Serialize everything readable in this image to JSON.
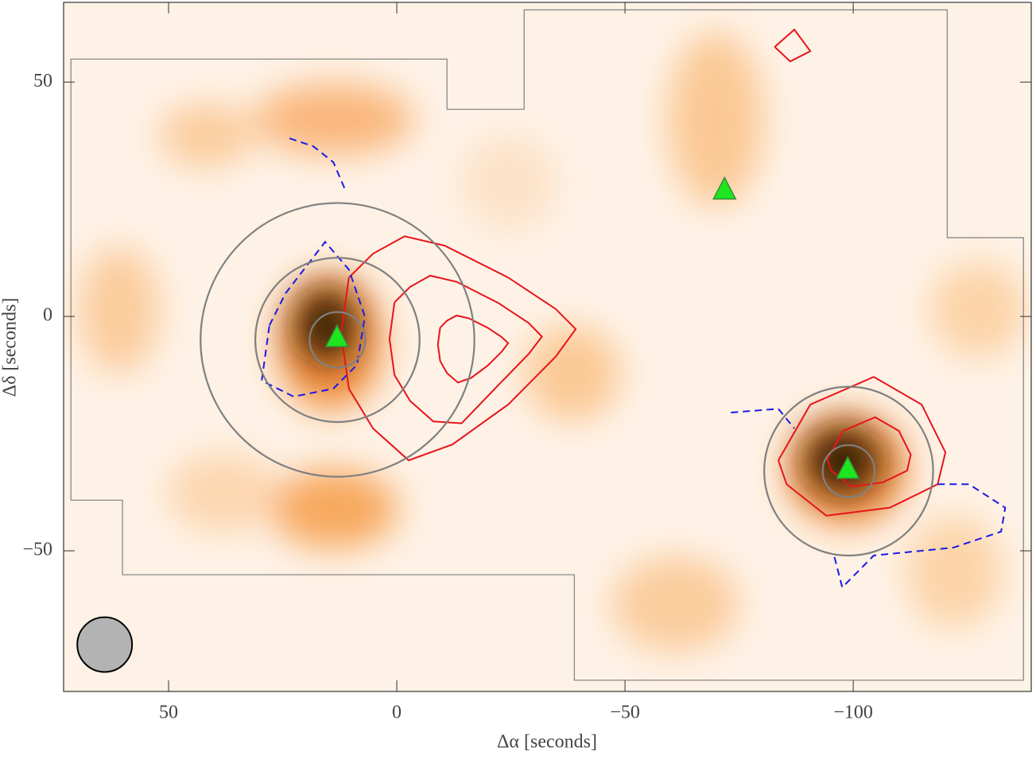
{
  "chart_data": {
    "type": "map",
    "x_label": "Δα [seconds]",
    "y_label": "Δδ [seconds]",
    "xlim": [
      73,
      -139
    ],
    "ylim": [
      -80,
      67
    ],
    "xticks": [
      50,
      0,
      {
        "value": -50,
        "label": "−50"
      },
      {
        "value": -100,
        "label": "−100"
      }
    ],
    "yticks": [
      50,
      0,
      {
        "value": -50,
        "label": "−50"
      }
    ],
    "coverage": {
      "color": "#888888",
      "x": [
        71.4,
        71.4,
        -11.0,
        -11.0,
        -27.9,
        -27.9,
        -120.6,
        -120.6,
        -137.3,
        -137.3,
        -38.9,
        -38.9,
        60.1,
        60.1,
        71.4
      ],
      "y": [
        -39.2,
        54.9,
        54.9,
        44.2,
        44.2,
        65.4,
        65.4,
        16.8,
        16.8,
        -77.6,
        -77.6,
        -55.1,
        -55.1,
        -39.2,
        -39.2
      ]
    },
    "contours": [
      {
        "color": "#e8141b",
        "dashed": false,
        "x": [
          10.5,
          5.2,
          -1.7,
          -10.5,
          -24.4,
          -34.8,
          -39.2,
          -34.8,
          -24.4,
          -12.2,
          -2.6,
          5.2,
          10.5,
          12.2,
          10.5
        ],
        "y": [
          8.3,
          13.4,
          17.1,
          15.1,
          8.3,
          1.6,
          -2.7,
          -8.6,
          -18.8,
          -27.3,
          -30.7,
          -23.9,
          -15.4,
          -3.6,
          8.3
        ]
      },
      {
        "color": "#e8141b",
        "dashed": false,
        "x": [
          0.5,
          -2.9,
          -7.3,
          -13.1,
          -22.2,
          -28.9,
          -31.8,
          -28.9,
          -22.2,
          -14.2,
          -8.0,
          -2.9,
          0.5,
          1.6,
          0.5
        ],
        "y": [
          3.0,
          6.3,
          8.7,
          7.4,
          2.9,
          -1.4,
          -4.3,
          -8.0,
          -14.7,
          -22.8,
          -22.4,
          -18.0,
          -12.5,
          -4.8,
          3.0
        ]
      },
      {
        "color": "#e8141b",
        "dashed": false,
        "x": [
          -9.5,
          -11.0,
          -13.1,
          -15.8,
          -19.9,
          -23.0,
          -24.4,
          -23.0,
          -19.9,
          -16.3,
          -13.4,
          -11.0,
          -9.5,
          -9.0,
          -9.5
        ],
        "y": [
          -2.4,
          -0.9,
          0.2,
          -0.4,
          -2.4,
          -4.4,
          -5.7,
          -7.5,
          -10.5,
          -13.1,
          -14.1,
          -12.1,
          -9.5,
          -6.0,
          -2.4
        ]
      },
      {
        "color": "#e8141b",
        "dashed": false,
        "x": [
          -83.6,
          -90.6,
          -104.5,
          -115.0,
          -120.2,
          -118.5,
          -108.0,
          -94.1,
          -85.4,
          -83.6
        ],
        "y": [
          -30.7,
          -18.8,
          -12.9,
          -18.8,
          -29.0,
          -35.8,
          -40.8,
          -42.5,
          -35.8,
          -30.7
        ]
      },
      {
        "color": "#e8141b",
        "dashed": false,
        "x": [
          -94.3,
          -97.8,
          -104.8,
          -110.0,
          -112.6,
          -111.8,
          -106.5,
          -99.6,
          -95.2,
          -94.3
        ],
        "y": [
          -30.4,
          -24.4,
          -21.5,
          -24.4,
          -29.5,
          -32.9,
          -35.4,
          -36.3,
          -32.9,
          -30.4
        ]
      },
      {
        "color": "#e8141b",
        "dashed": false,
        "x": [
          -82.8,
          -87.1,
          -90.6,
          -86.2,
          -82.8
        ],
        "y": [
          57.5,
          61.2,
          56.6,
          54.4,
          57.5
        ]
      },
      {
        "color": "#1a1ae6",
        "dashed": true,
        "x": [
          23.5,
          18.3,
          13.9,
          11.3
        ],
        "y": [
          38.0,
          36.3,
          32.9,
          27.0
        ]
      },
      {
        "color": "#1a1ae6",
        "dashed": true,
        "x": [
          27.9,
          24.4,
          15.7,
          10.5,
          7.0,
          8.7,
          13.9,
          22.6,
          29.6,
          27.9
        ],
        "y": [
          -1.9,
          4.9,
          15.9,
          10.0,
          0,
          -10.3,
          -15.4,
          -17.1,
          -13.7,
          -1.9
        ]
      },
      {
        "color": "#1a1ae6",
        "dashed": true,
        "x": [
          -118.5,
          -125.4,
          -133.3,
          -132.4,
          -122.0,
          -104.5,
          -97.6,
          -95.8
        ],
        "y": [
          -35.8,
          -35.8,
          -40.8,
          -45.9,
          -49.3,
          -51.0,
          -57.8,
          -51.0
        ]
      },
      {
        "color": "#1a1ae6",
        "dashed": true,
        "x": [
          -73.2,
          -83.6,
          -87.1
        ],
        "y": [
          -20.5,
          -19.7,
          -23.9
        ]
      }
    ],
    "rings": {
      "color": "#808080",
      "x": [
        13,
        13,
        13,
        -99,
        -99
      ],
      "y": [
        -5,
        -5,
        -5,
        -33,
        -33
      ],
      "r": [
        6.1,
        18,
        30,
        5.7,
        18.5
      ]
    },
    "sources": {
      "color": "#1ee61e",
      "x": [
        13.1,
        -71.8,
        -98.8
      ],
      "y": [
        -4.4,
        27.1,
        -32.5
      ]
    },
    "beam": {
      "color": "#b3b3b3",
      "x": 64,
      "y": -70,
      "r": 6
    }
  }
}
